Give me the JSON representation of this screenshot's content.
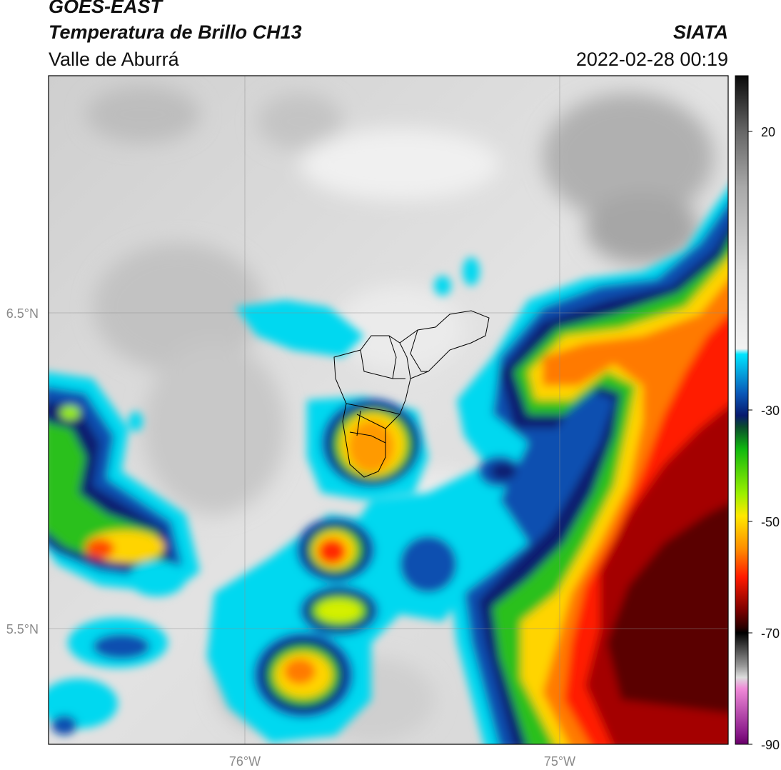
{
  "header": {
    "satellite": "GOES-EAST",
    "product": "Temperatura de Brillo CH13",
    "region": "Valle de Aburrá",
    "agency": "SIATA",
    "datetime": "2022-02-28 00:19"
  },
  "axes": {
    "lat_ticks": [
      {
        "label": "6.5°N",
        "value": 6.5
      },
      {
        "label": "5.5°N",
        "value": 5.5
      }
    ],
    "lon_ticks": [
      {
        "label": "76°W",
        "value": -76.0
      },
      {
        "label": "75°W",
        "value": -75.0
      }
    ],
    "gridlines": true
  },
  "colorbar": {
    "position": "right",
    "range": [
      -90,
      30
    ],
    "ticks": [
      {
        "label": "20",
        "value": 20
      },
      {
        "label": "-30",
        "value": -30
      },
      {
        "label": "-50",
        "value": -50
      },
      {
        "label": "-70",
        "value": -70
      },
      {
        "label": "-90",
        "value": -90
      }
    ],
    "stops": [
      {
        "v": 30,
        "c": "#0a0a0a"
      },
      {
        "v": 20,
        "c": "#666666"
      },
      {
        "v": 10,
        "c": "#a9a9a9"
      },
      {
        "v": -5,
        "c": "#dcdcdc"
      },
      {
        "v": -19,
        "c": "#f2f2f2"
      },
      {
        "v": -20,
        "c": "#00e5ff"
      },
      {
        "v": -27,
        "c": "#0a58b8"
      },
      {
        "v": -31,
        "c": "#081a6e"
      },
      {
        "v": -33,
        "c": "#0b4a2e"
      },
      {
        "v": -37,
        "c": "#10b80f"
      },
      {
        "v": -45,
        "c": "#9bf000"
      },
      {
        "v": -49,
        "c": "#ffe800"
      },
      {
        "v": -55,
        "c": "#ff8c00"
      },
      {
        "v": -60,
        "c": "#ff1a00"
      },
      {
        "v": -66,
        "c": "#7a0000"
      },
      {
        "v": -69,
        "c": "#2a0000"
      },
      {
        "v": -70,
        "c": "#000000"
      },
      {
        "v": -76,
        "c": "#9a9a9a"
      },
      {
        "v": -78,
        "c": "#dddddd"
      },
      {
        "v": -80,
        "c": "#f08ad8"
      },
      {
        "v": -88,
        "c": "#8a1a8a"
      },
      {
        "v": -89.9,
        "c": "#6a006a"
      },
      {
        "v": -90,
        "c": "#ffffff"
      }
    ]
  },
  "colors": {
    "clear_sky": "#d9d9d9",
    "cold_top": "#00d8f0",
    "deep_convection": "#ff7a00",
    "overshooting": "#7a0000"
  }
}
